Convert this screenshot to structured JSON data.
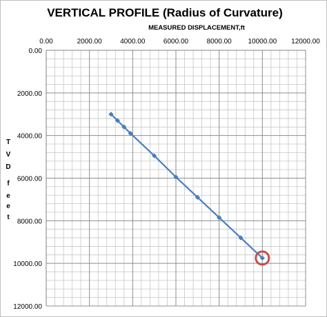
{
  "chart_data": {
    "type": "line",
    "title": "VERTICAL PROFILE (Radius of Curvature)",
    "xlabel": "MEASURED DISPLACEMENT,ft",
    "ylabel": "TVD feet",
    "ylabel_letters": [
      "T",
      "V",
      "D",
      "",
      "f",
      "e",
      "e",
      "t"
    ],
    "xlim": [
      0,
      12000
    ],
    "ylim": [
      0,
      12000
    ],
    "y_inverted": true,
    "x_axis_position": "top",
    "x_ticks": [
      "0.00",
      "2000.00",
      "4000.00",
      "6000.00",
      "8000.00",
      "10000.00",
      "12000.00"
    ],
    "y_ticks": [
      "0.00",
      "2000.00",
      "4000.00",
      "6000.00",
      "8000.00",
      "10000.00",
      "12000.00"
    ],
    "x_tick_values": [
      0,
      2000,
      4000,
      6000,
      8000,
      10000,
      12000
    ],
    "y_tick_values": [
      0,
      2000,
      4000,
      6000,
      8000,
      10000,
      12000
    ],
    "grid": true,
    "minor_grid_step": 400,
    "series": [
      {
        "x": [
          3000,
          3300,
          3600,
          3900,
          5000,
          6000,
          7000,
          8000,
          9000,
          10000
        ],
        "y": [
          3000,
          3300,
          3600,
          3900,
          4950,
          5950,
          6900,
          7850,
          8800,
          9750
        ],
        "color": "#4a7ebb"
      }
    ],
    "highlight": {
      "x": 10000,
      "y": 9750,
      "color": "#c0504d"
    }
  }
}
